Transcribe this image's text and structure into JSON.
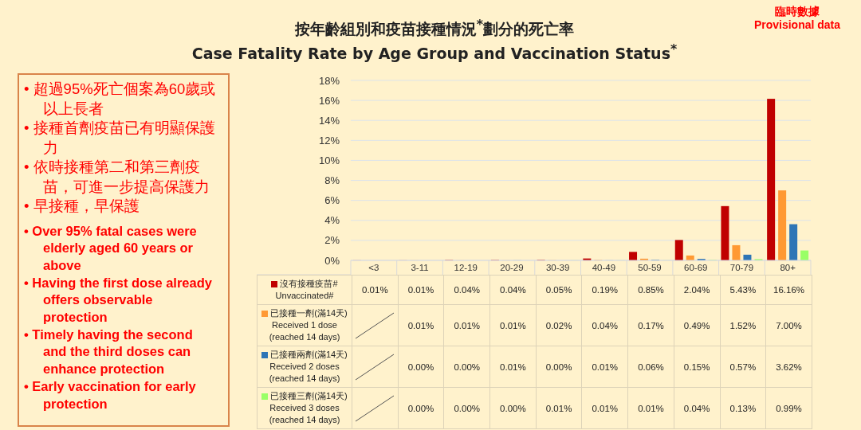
{
  "chart_data": {
    "type": "bar",
    "title": "按年齡組別和疫苗接種情況$^{*}$劃分的死亡率",
    "subtitle": "Case Fatality Rate by Age Group and Vaccination Status$^{*}$",
    "categories": [
      "<3",
      "3-11",
      "12-19",
      "20-29",
      "30-39",
      "40-49",
      "50-59",
      "60-69",
      "70-79",
      "80+"
    ],
    "series": [
      {
        "name": "沒有接種疫苗# Unvaccinated#",
        "color": "#c00000",
        "values": [
          0.01,
          0.01,
          0.04,
          0.04,
          0.05,
          0.19,
          0.85,
          2.04,
          5.43,
          16.16
        ],
        "value_labels": [
          "0.01%",
          "0.01%",
          "0.04%",
          "0.04%",
          "0.05%",
          "0.19%",
          "0.85%",
          "2.04%",
          "5.43%",
          "16.16%"
        ]
      },
      {
        "name": "已接種一劑(滿14天) Received 1 dose (reached 14 days)",
        "color": "#ff9933",
        "values": [
          null,
          0.01,
          0.01,
          0.01,
          0.02,
          0.04,
          0.17,
          0.49,
          1.52,
          7.0
        ],
        "value_labels": [
          null,
          "0.01%",
          "0.01%",
          "0.01%",
          "0.02%",
          "0.04%",
          "0.17%",
          "0.49%",
          "1.52%",
          "7.00%"
        ]
      },
      {
        "name": "已接種兩劑(滿14天) Received 2 doses (reached 14 days)",
        "color": "#2e75b6",
        "values": [
          null,
          0.0,
          0.0,
          0.01,
          0.0,
          0.01,
          0.06,
          0.15,
          0.57,
          3.62
        ],
        "value_labels": [
          null,
          "0.00%",
          "0.00%",
          "0.01%",
          "0.00%",
          "0.01%",
          "0.06%",
          "0.15%",
          "0.57%",
          "3.62%"
        ]
      },
      {
        "name": "已接種三劑(滿14天) Received 3 doses (reached 14 days)",
        "color": "#99ff66",
        "values": [
          null,
          0.0,
          0.0,
          0.0,
          0.01,
          0.01,
          0.01,
          0.04,
          0.13,
          0.99
        ],
        "value_labels": [
          null,
          "0.00%",
          "0.00%",
          "0.00%",
          "0.01%",
          "0.01%",
          "0.01%",
          "0.04%",
          "0.13%",
          "0.99%"
        ]
      }
    ],
    "ylim": [
      0,
      18
    ],
    "yticks": [
      {
        "value": 0,
        "label": "0%"
      },
      {
        "value": 2,
        "label": "2%"
      },
      {
        "value": 4,
        "label": "4%"
      },
      {
        "value": 6,
        "label": "6%"
      },
      {
        "value": 8,
        "label": "8%"
      },
      {
        "value": 10,
        "label": "10%"
      },
      {
        "value": 12,
        "label": "12%"
      },
      {
        "value": 14,
        "label": "14%"
      },
      {
        "value": 16,
        "label": "16%"
      },
      {
        "value": 18,
        "label": "18%"
      }
    ],
    "grid": "y",
    "legend": "bottom",
    "annotations": [
      "臨時數據",
      "Provisional data",
      "• 超過95%死亡個案為60歲或以上長者",
      "• 接種首劑疫苗已有明顯保護力",
      "• 依時接種第二和第三劑疫苗，可進一步提高保護力",
      "• 早接種，早保護",
      "• Over 95% fatal cases were elderly aged 60 years or above",
      "• Having the first dose already offers observable protection",
      "• Timely having the second and the third doses can enhance protection",
      "• Early vaccination for early protection"
    ]
  }
}
